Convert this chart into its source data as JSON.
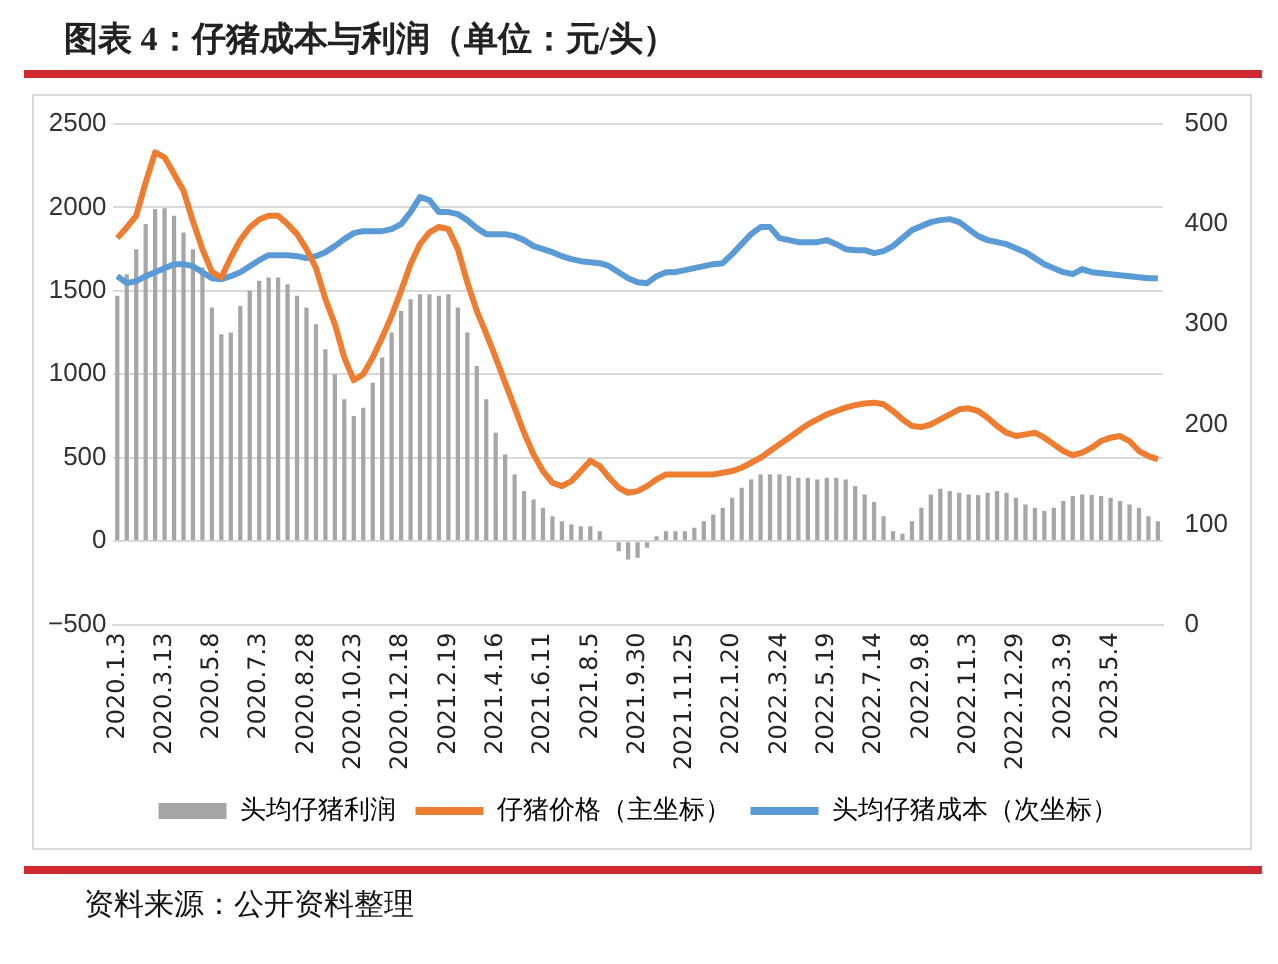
{
  "chart_data": {
    "type": "bar",
    "title": "图表 4：仔猪成本与利润（单位：元/头）",
    "categories": [
      "2020.1.3",
      null,
      null,
      null,
      null,
      "2020.3.13",
      null,
      null,
      null,
      null,
      "2020.5.8",
      null,
      null,
      null,
      null,
      "2020.7.3",
      null,
      null,
      null,
      null,
      "2020.8.28",
      null,
      null,
      null,
      null,
      "2020.10.23",
      null,
      null,
      null,
      null,
      "2020.12.18",
      null,
      null,
      null,
      null,
      "2021.2.19",
      null,
      null,
      null,
      null,
      "2021.4.16",
      null,
      null,
      null,
      null,
      "2021.6.11",
      null,
      null,
      null,
      null,
      "2021.8.5",
      null,
      null,
      null,
      null,
      "2021.9.30",
      null,
      null,
      null,
      null,
      "2021.11.25",
      null,
      null,
      null,
      null,
      "2022.1.20",
      null,
      null,
      null,
      null,
      "2022.3.24",
      null,
      null,
      null,
      null,
      "2022.5.19",
      null,
      null,
      null,
      null,
      "2022.7.14",
      null,
      null,
      null,
      null,
      "2022.9.8",
      null,
      null,
      null,
      null,
      "2022.11.3",
      null,
      null,
      null,
      null,
      "2022.12.29",
      null,
      null,
      null,
      null,
      "2023.3.9",
      null,
      null,
      null,
      null,
      "2023.5.4",
      null,
      null,
      null,
      null,
      null
    ],
    "series": [
      {
        "name": "头均仔猪利润",
        "color": "#a6a6a6",
        "values": [
          1470,
          1600,
          1750,
          1900,
          1990,
          1995,
          1950,
          1850,
          1750,
          1640,
          1400,
          1240,
          1250,
          1410,
          1500,
          1560,
          1580,
          1580,
          1540,
          1470,
          1400,
          1300,
          1150,
          1000,
          850,
          750,
          800,
          950,
          1100,
          1250,
          1380,
          1450,
          1480,
          1480,
          1470,
          1480,
          1400,
          1250,
          1050,
          850,
          650,
          520,
          400,
          300,
          250,
          200,
          150,
          120,
          100,
          90,
          90,
          60,
          null,
          -60,
          -110,
          -100,
          -40,
          30,
          60,
          60,
          60,
          80,
          120,
          160,
          200,
          260,
          320,
          370,
          400,
          400,
          400,
          390,
          380,
          380,
          370,
          380,
          380,
          370,
          330,
          280,
          235,
          150,
          60,
          45,
          120,
          200,
          280,
          314,
          300,
          290,
          280,
          276,
          290,
          300,
          290,
          260,
          220,
          200,
          180,
          200,
          240,
          270,
          280,
          276,
          270,
          260,
          240,
          220,
          200,
          150,
          120
        ]
      },
      {
        "name": "仔猪价格（主坐标）",
        "type": "line",
        "color": "#ed7d31",
        "values": [
          1816,
          1880,
          1950,
          2150,
          2330,
          2300,
          2200,
          2100,
          1917,
          1750,
          1614,
          1580,
          1700,
          1805,
          1880,
          1928,
          1950,
          1950,
          1900,
          1840,
          1750,
          1637,
          1450,
          1300,
          1100,
          964,
          1000,
          1100,
          1220,
          1350,
          1500,
          1660,
          1780,
          1850,
          1883,
          1870,
          1750,
          1550,
          1380,
          1244,
          1100,
          950,
          800,
          650,
          520,
          420,
          350,
          330,
          360,
          420,
          482,
          450,
          380,
          320,
          290,
          300,
          330,
          370,
          400,
          400,
          400,
          400,
          400,
          400,
          410,
          420,
          440,
          470,
          500,
          540,
          580,
          620,
          660,
          700,
          730,
          760,
          780,
          800,
          815,
          825,
          830,
          820,
          780,
          730,
          690,
          684,
          700,
          730,
          760,
          790,
          796,
          780,
          740,
          690,
          650,
          630,
          640,
          650,
          620,
          580,
          540,
          515,
          530,
          560,
          600,
          620,
          630,
          600,
          540,
          510,
          490
        ]
      },
      {
        "name": "头均仔猪成本（次坐标）",
        "type": "line",
        "axis": "y2",
        "color": "#5b9bd5",
        "values": [
          348,
          341,
          343,
          348,
          352,
          356,
          360,
          360,
          358,
          352,
          346,
          345,
          348,
          352,
          358,
          364,
          369,
          369,
          369,
          368,
          366,
          368,
          372,
          378,
          385,
          391,
          393,
          393,
          393,
          395,
          400,
          412,
          427,
          424,
          412,
          412,
          410,
          404,
          396,
          390,
          390,
          390,
          388,
          384,
          378,
          375,
          372,
          368,
          365,
          363,
          362,
          361,
          358,
          352,
          346,
          342,
          341,
          348,
          352,
          352,
          354,
          356,
          358,
          360,
          361,
          370,
          380,
          390,
          397,
          397,
          386,
          384,
          382,
          382,
          382,
          384,
          380,
          375,
          374,
          374,
          371,
          373,
          378,
          386,
          394,
          398,
          402,
          404,
          405,
          402,
          395,
          388,
          384,
          382,
          380,
          376,
          372,
          366,
          360,
          356,
          352,
          350,
          355,
          352,
          351,
          350,
          349,
          348,
          347,
          346,
          346
        ]
      }
    ],
    "ylim": [
      -500,
      2500
    ],
    "yticks": [
      {
        "value": -500,
        "label": "−500"
      },
      0,
      500,
      1000,
      1500,
      2000,
      2500
    ],
    "y2lim": [
      0,
      500
    ],
    "y2ticks": [
      0,
      100,
      200,
      300,
      400,
      500
    ],
    "grid": "y",
    "legend": "bottom",
    "annotations": [
      "资料来源：公开资料整理"
    ]
  }
}
